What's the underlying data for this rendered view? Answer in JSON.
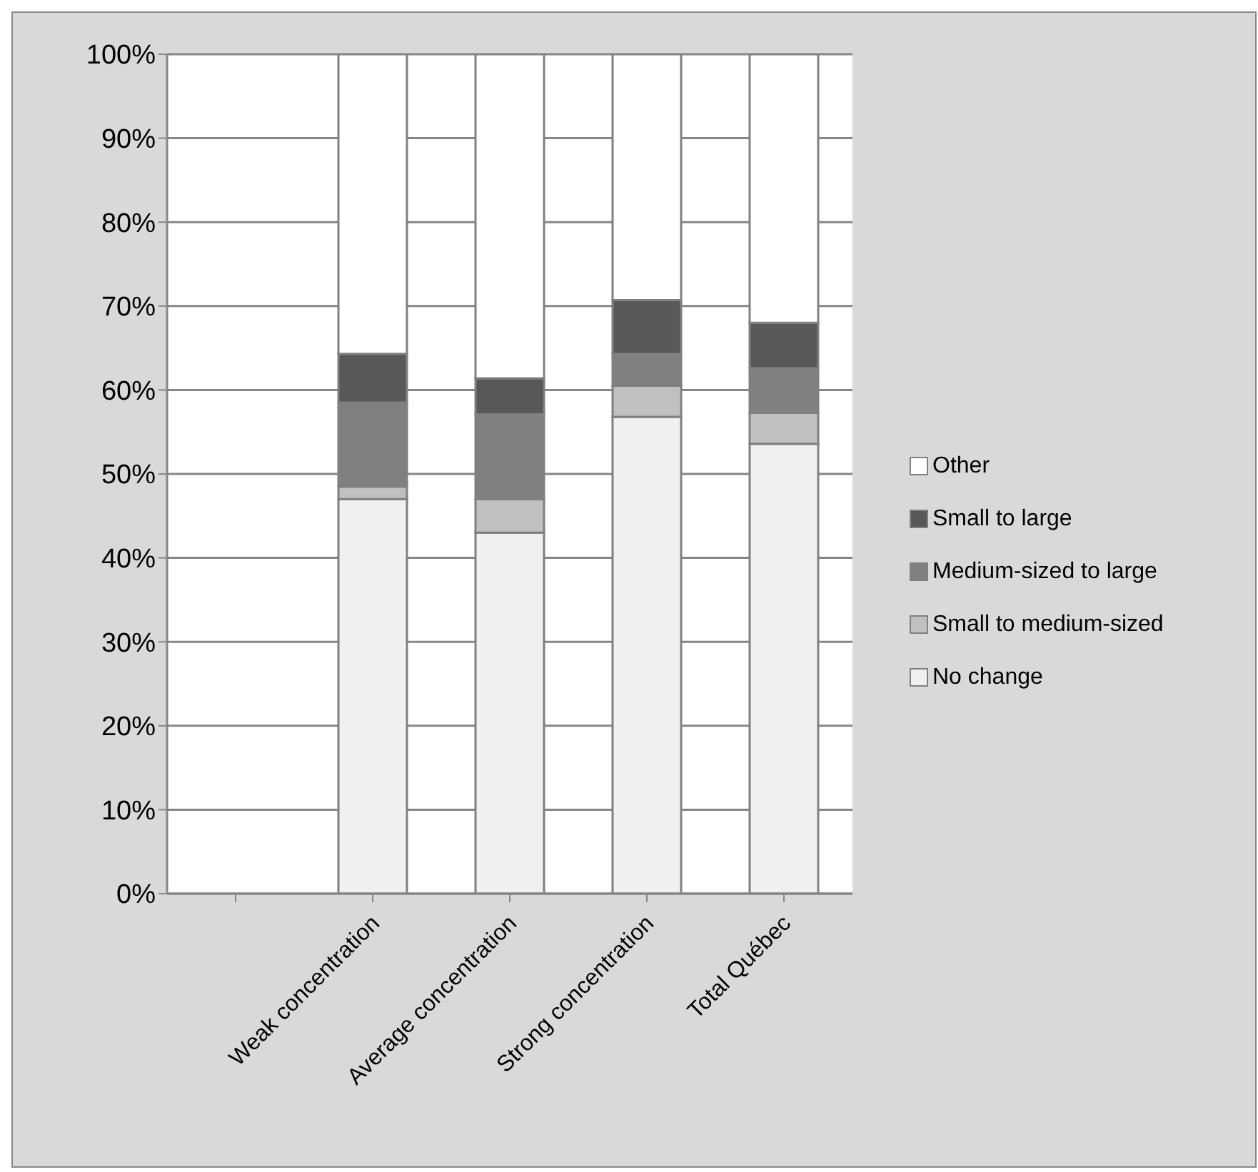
{
  "chart_data": {
    "type": "bar",
    "stacked": true,
    "categories": [
      null,
      "Weak concentration",
      "Average concentration",
      "Strong concentration",
      "Total Québec"
    ],
    "series": [
      {
        "name": "No change",
        "color": "#f0f0f0",
        "values": [
          null,
          47,
          43,
          56.8,
          53.6
        ]
      },
      {
        "name": "Small to medium-sized",
        "color": "#c0c0c0",
        "values": [
          null,
          1.5,
          4,
          3.7,
          3.7
        ]
      },
      {
        "name": "Medium-sized to large",
        "color": "#808080",
        "values": [
          null,
          10,
          10.1,
          3.8,
          5.3
        ]
      },
      {
        "name": "Small to large",
        "color": "#585858",
        "values": [
          null,
          5.8,
          4.3,
          6.4,
          5.4
        ]
      },
      {
        "name": "Other",
        "color": "#ffffff",
        "values": [
          null,
          35.7,
          38.6,
          29.3,
          32
        ]
      }
    ],
    "ylim": [
      0,
      100
    ],
    "yticks": [
      {
        "value": 0,
        "label": "0%"
      },
      {
        "value": 10,
        "label": "10%"
      },
      {
        "value": 20,
        "label": "20%"
      },
      {
        "value": 30,
        "label": "30%"
      },
      {
        "value": 40,
        "label": "40%"
      },
      {
        "value": 50,
        "label": "50%"
      },
      {
        "value": 60,
        "label": "60%"
      },
      {
        "value": 70,
        "label": "70%"
      },
      {
        "value": 80,
        "label": "80%"
      },
      {
        "value": 90,
        "label": "90%"
      },
      {
        "value": 100,
        "label": "100%"
      }
    ],
    "grid": "y",
    "legend": "right"
  }
}
